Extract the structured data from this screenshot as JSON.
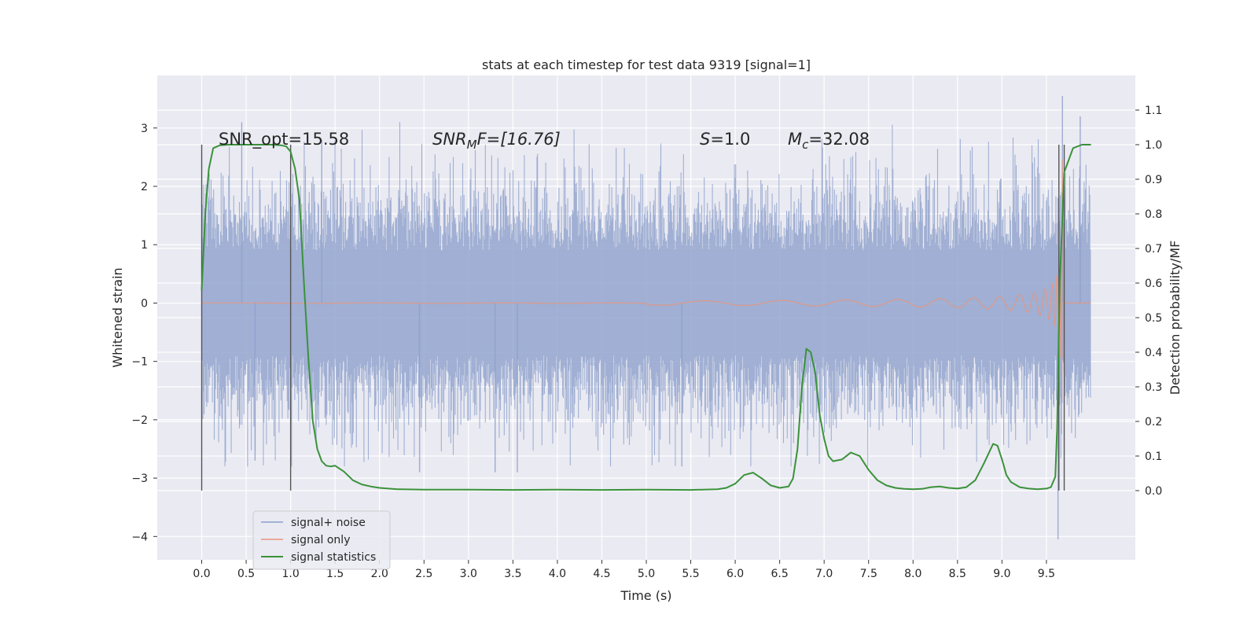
{
  "chart_data": {
    "type": "line",
    "title": "stats at each timestep for test data 9319 [signal=1]",
    "xlabel": "Time (s)",
    "ylabel": "Whitened strain",
    "ylabel_right": "Detection probability/MF",
    "xlim": [
      -0.5,
      10.5
    ],
    "ylim": [
      -4.4,
      3.9
    ],
    "ylim_right": [
      -0.2,
      1.2
    ],
    "x_ticks": [
      "0.0",
      "0.5",
      "1.0",
      "1.5",
      "2.0",
      "2.5",
      "3.0",
      "3.5",
      "4.0",
      "4.5",
      "5.0",
      "5.5",
      "6.0",
      "6.5",
      "7.0",
      "7.5",
      "8.0",
      "8.5",
      "9.0",
      "9.5"
    ],
    "y_ticks": [
      "3",
      "2",
      "1",
      "0",
      "−1",
      "−2",
      "−3",
      "−4"
    ],
    "y_ticks_right": [
      "1.1",
      "1.0",
      "0.9",
      "0.8",
      "0.7",
      "0.6",
      "0.5",
      "0.4",
      "0.3",
      "0.2",
      "0.1",
      "0.0"
    ],
    "grid": true,
    "legend_position": "lower-left",
    "annotations": {
      "snr_opt": "SNR_opt=15.58",
      "snr_mf_main": "SNR",
      "snr_mf_sub": "M",
      "snr_mf_rest": "F=[16.76]",
      "s_main": "S",
      "s_rest": "=1.0",
      "mc_main": "M",
      "mc_sub": "c",
      "mc_rest": "=32.08"
    },
    "vertical_lines_x": [
      0.0,
      1.0,
      9.64,
      9.7
    ],
    "series": [
      {
        "name": "signal+ noise",
        "color": "#8da0cb",
        "axis": "left",
        "description_of_shape": "dense noisy band",
        "x_range": [
          0.0,
          10.0
        ],
        "band_core": [
          -1.0,
          1.0
        ],
        "typical_extremes": [
          -2.5,
          2.8
        ],
        "max": 3.55,
        "min": -4.05
      },
      {
        "name": "signal only",
        "color": "#e8957c",
        "axis": "left",
        "x_range": [
          0.0,
          10.0
        ],
        "chirp_end_x": 9.68,
        "peak_amplitude": 3.2
      },
      {
        "name": "signal statistics",
        "color": "#3a923a",
        "axis": "right",
        "x": [
          0.0,
          0.04,
          0.08,
          0.13,
          0.2,
          0.3,
          0.4,
          0.5,
          0.6,
          0.7,
          0.8,
          0.9,
          0.95,
          1.0,
          1.05,
          1.1,
          1.15,
          1.2,
          1.25,
          1.3,
          1.35,
          1.4,
          1.45,
          1.5,
          1.6,
          1.7,
          1.8,
          1.9,
          2.0,
          2.2,
          2.5,
          3.0,
          3.5,
          4.0,
          4.5,
          5.0,
          5.5,
          5.8,
          5.9,
          6.0,
          6.1,
          6.2,
          6.3,
          6.4,
          6.5,
          6.6,
          6.65,
          6.7,
          6.75,
          6.8,
          6.85,
          6.9,
          6.95,
          7.0,
          7.05,
          7.1,
          7.2,
          7.3,
          7.4,
          7.5,
          7.6,
          7.7,
          7.8,
          7.9,
          8.0,
          8.1,
          8.2,
          8.3,
          8.4,
          8.5,
          8.6,
          8.7,
          8.8,
          8.9,
          8.95,
          9.0,
          9.05,
          9.1,
          9.2,
          9.3,
          9.4,
          9.5,
          9.55,
          9.6,
          9.62,
          9.65,
          9.7,
          9.8,
          9.9,
          10.0
        ],
        "y": [
          0.58,
          0.8,
          0.93,
          0.99,
          0.998,
          1.0,
          1.0,
          1.0,
          1.0,
          1.0,
          1.0,
          0.998,
          0.995,
          0.98,
          0.93,
          0.84,
          0.6,
          0.38,
          0.2,
          0.12,
          0.085,
          0.072,
          0.07,
          0.072,
          0.055,
          0.03,
          0.018,
          0.012,
          0.008,
          0.004,
          0.003,
          0.003,
          0.002,
          0.003,
          0.002,
          0.003,
          0.002,
          0.004,
          0.008,
          0.02,
          0.045,
          0.052,
          0.035,
          0.015,
          0.008,
          0.012,
          0.035,
          0.12,
          0.3,
          0.41,
          0.4,
          0.34,
          0.22,
          0.15,
          0.1,
          0.085,
          0.09,
          0.11,
          0.1,
          0.06,
          0.03,
          0.015,
          0.008,
          0.005,
          0.004,
          0.005,
          0.01,
          0.012,
          0.008,
          0.006,
          0.01,
          0.03,
          0.08,
          0.135,
          0.13,
          0.09,
          0.045,
          0.025,
          0.01,
          0.006,
          0.004,
          0.006,
          0.01,
          0.04,
          0.18,
          0.6,
          0.92,
          0.99,
          1.0,
          1.0
        ]
      }
    ]
  }
}
